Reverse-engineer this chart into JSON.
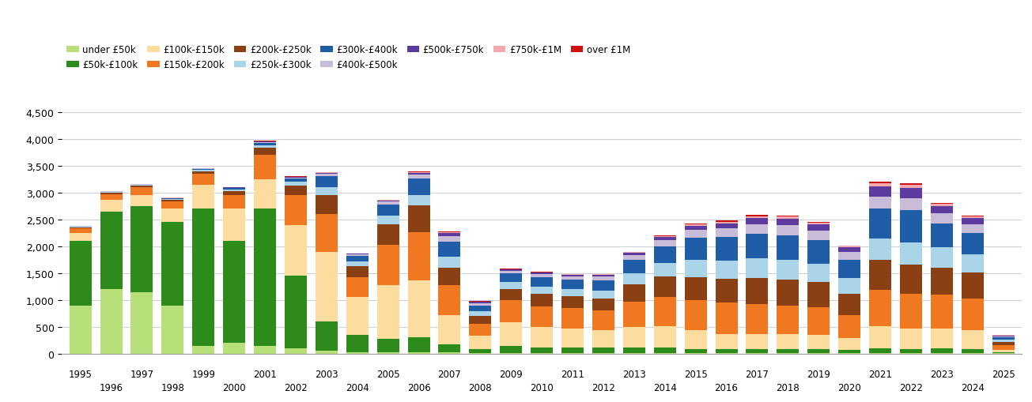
{
  "years": [
    1995,
    1996,
    1997,
    1998,
    1999,
    2000,
    2001,
    2002,
    2003,
    2004,
    2005,
    2006,
    2007,
    2008,
    2009,
    2010,
    2011,
    2012,
    2013,
    2014,
    2015,
    2016,
    2017,
    2018,
    2019,
    2020,
    2021,
    2022,
    2023,
    2024,
    2025
  ],
  "categories": [
    "under £50k",
    "£50k-£100k",
    "£100k-£150k",
    "£150k-£200k",
    "£200k-£250k",
    "£250k-£300k",
    "£300k-£400k",
    "£400k-£500k",
    "£500k-£750k",
    "£750k-£1M",
    "over £1M"
  ],
  "colors": [
    "#b8e07a",
    "#2d8b1c",
    "#fddca0",
    "#f07820",
    "#8b4014",
    "#aad4e8",
    "#1f5ea6",
    "#c8bcd8",
    "#5c3a9e",
    "#f4a8b0",
    "#cc1111"
  ],
  "data": {
    "under £50k": [
      900,
      1200,
      1150,
      900,
      150,
      200,
      150,
      100,
      50,
      30,
      30,
      30,
      20,
      10,
      10,
      10,
      10,
      10,
      10,
      10,
      10,
      10,
      10,
      10,
      10,
      5,
      5,
      5,
      5,
      5,
      5
    ],
    "£50k-£100k": [
      1200,
      1450,
      1600,
      1550,
      2550,
      1900,
      2550,
      1350,
      550,
      320,
      250,
      280,
      150,
      70,
      130,
      110,
      100,
      100,
      100,
      100,
      80,
      80,
      80,
      80,
      70,
      60,
      100,
      80,
      100,
      80,
      20
    ],
    "£100k-£150k": [
      150,
      220,
      200,
      250,
      450,
      600,
      550,
      950,
      1300,
      700,
      1000,
      1050,
      550,
      250,
      450,
      380,
      360,
      330,
      380,
      400,
      350,
      280,
      280,
      270,
      270,
      220,
      400,
      380,
      370,
      360,
      50
    ],
    "£150k-£200k": [
      80,
      100,
      150,
      130,
      200,
      250,
      450,
      550,
      700,
      380,
      750,
      900,
      550,
      230,
      400,
      380,
      380,
      370,
      480,
      540,
      550,
      580,
      550,
      530,
      520,
      430,
      680,
      650,
      620,
      580,
      80
    ],
    "£200k-£250k": [
      20,
      25,
      30,
      35,
      50,
      80,
      130,
      180,
      350,
      200,
      380,
      500,
      330,
      140,
      220,
      230,
      220,
      220,
      320,
      390,
      440,
      450,
      490,
      490,
      460,
      400,
      560,
      540,
      510,
      490,
      60
    ],
    "£250k-£300k": [
      10,
      10,
      10,
      15,
      20,
      30,
      55,
      75,
      150,
      85,
      160,
      200,
      200,
      90,
      130,
      140,
      140,
      145,
      200,
      250,
      310,
      330,
      360,
      360,
      340,
      290,
      400,
      420,
      380,
      340,
      40
    ],
    "£300k-£400k": [
      10,
      10,
      10,
      10,
      20,
      20,
      45,
      55,
      200,
      100,
      210,
      300,
      280,
      110,
      160,
      175,
      175,
      195,
      250,
      310,
      420,
      440,
      460,
      460,
      440,
      340,
      560,
      600,
      440,
      390,
      50
    ],
    "£400k-£500k": [
      5,
      5,
      5,
      5,
      8,
      10,
      15,
      20,
      45,
      30,
      55,
      80,
      110,
      45,
      45,
      55,
      55,
      65,
      90,
      110,
      145,
      165,
      185,
      195,
      185,
      145,
      220,
      225,
      185,
      165,
      20
    ],
    "£500k-£750k": [
      5,
      5,
      5,
      5,
      5,
      8,
      10,
      10,
      20,
      15,
      22,
      32,
      55,
      22,
      22,
      28,
      28,
      32,
      45,
      58,
      78,
      90,
      110,
      120,
      110,
      90,
      190,
      190,
      135,
      110,
      15
    ],
    "£750k-£1M": [
      3,
      3,
      3,
      3,
      3,
      3,
      5,
      5,
      10,
      6,
      10,
      12,
      22,
      8,
      8,
      10,
      10,
      10,
      16,
      22,
      28,
      32,
      38,
      38,
      32,
      28,
      55,
      55,
      42,
      38,
      5
    ],
    "over £1M": [
      3,
      3,
      3,
      3,
      3,
      3,
      5,
      5,
      10,
      5,
      5,
      10,
      16,
      5,
      5,
      5,
      5,
      5,
      10,
      10,
      16,
      20,
      22,
      22,
      16,
      10,
      32,
      32,
      22,
      16,
      5
    ]
  },
  "ylim": [
    0,
    4500
  ],
  "yticks": [
    0,
    500,
    1000,
    1500,
    2000,
    2500,
    3000,
    3500,
    4000,
    4500
  ],
  "bg_color": "#ffffff",
  "grid_color": "#d0d0d8"
}
